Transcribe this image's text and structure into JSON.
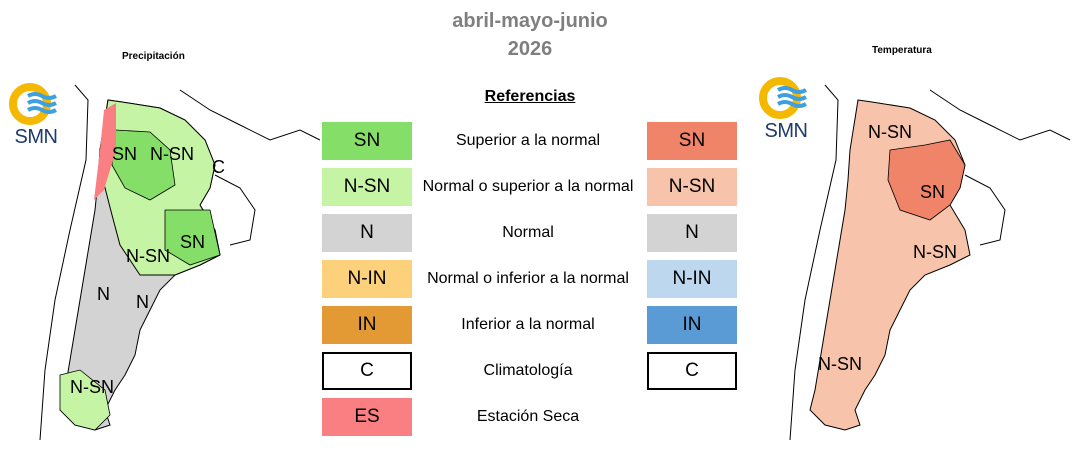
{
  "header": {
    "title_line1": "abril-mayo-junio",
    "title_line2": "2026"
  },
  "maps": {
    "precipitation": {
      "title": "Precipitación",
      "labels": [
        "SN",
        "N-SN",
        "C",
        "N-SN",
        "SN",
        "N",
        "N",
        "N-SN"
      ]
    },
    "temperature": {
      "title": "Temperatura",
      "labels": [
        "N-SN",
        "SN",
        "N-SN",
        "N-SN"
      ]
    }
  },
  "logo": {
    "text": "SMN"
  },
  "legend": {
    "heading": "Referencias",
    "rows": [
      {
        "left_code": "SN",
        "left_color": "#85de67",
        "desc": "Superior a la normal",
        "right_code": "SN",
        "right_color": "#f08469"
      },
      {
        "left_code": "N-SN",
        "left_color": "#c5f5a4",
        "desc": "Normal o superior a la normal",
        "right_code": "N-SN",
        "right_color": "#f7c3aa"
      },
      {
        "left_code": "N",
        "left_color": "#d3d3d3",
        "desc": "Normal",
        "right_code": "N",
        "right_color": "#d3d3d3"
      },
      {
        "left_code": "N-IN",
        "left_color": "#fdd07b",
        "desc": "Normal o inferior a la normal",
        "right_code": "N-IN",
        "right_color": "#bdd7ee"
      },
      {
        "left_code": "IN",
        "left_color": "#e39a35",
        "desc": "Inferior a la normal",
        "right_code": "IN",
        "right_color": "#5b9bd5"
      },
      {
        "left_code": "C",
        "left_color": "#ffffff",
        "desc": "Climatología",
        "right_code": "C",
        "right_color": "#ffffff"
      },
      {
        "left_code": "ES",
        "left_color": "#fa7f82",
        "desc": "Estación Seca"
      }
    ]
  }
}
